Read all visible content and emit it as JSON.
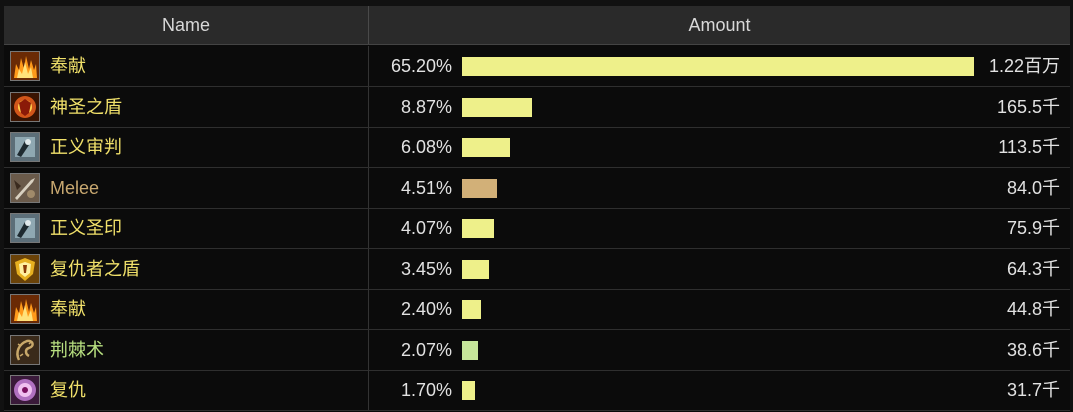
{
  "header": {
    "name_label": "Name",
    "amount_label": "Amount"
  },
  "colors": {
    "ability_text": "#f0e06a",
    "melee_text": "#c8a870",
    "nature_text": "#b8e080",
    "bar_holy": "#eef08a",
    "bar_melee": "#d2b078",
    "bar_nature": "#c6e69a"
  },
  "rows": [
    {
      "name": "奉献",
      "percent": "65.20%",
      "fraction": 0.652,
      "amount": "1.22百万",
      "icon": "consecration-icon",
      "kind": "holy"
    },
    {
      "name": "神圣之盾",
      "percent": "8.87%",
      "fraction": 0.0887,
      "amount": "165.5千",
      "icon": "holy-shield-icon",
      "kind": "holy"
    },
    {
      "name": "正义审判",
      "percent": "6.08%",
      "fraction": 0.0608,
      "amount": "113.5千",
      "icon": "judgement-icon",
      "kind": "holy"
    },
    {
      "name": "Melee",
      "percent": "4.51%",
      "fraction": 0.0451,
      "amount": "84.0千",
      "icon": "melee-icon",
      "kind": "melee"
    },
    {
      "name": "正义圣印",
      "percent": "4.07%",
      "fraction": 0.0407,
      "amount": "75.9千",
      "icon": "seal-icon",
      "kind": "holy"
    },
    {
      "name": "复仇者之盾",
      "percent": "3.45%",
      "fraction": 0.0345,
      "amount": "64.3千",
      "icon": "avengers-shield-icon",
      "kind": "holy"
    },
    {
      "name": "奉献",
      "percent": "2.40%",
      "fraction": 0.024,
      "amount": "44.8千",
      "icon": "consecration-icon",
      "kind": "holy"
    },
    {
      "name": "荆棘术",
      "percent": "2.07%",
      "fraction": 0.0207,
      "amount": "38.6千",
      "icon": "thorns-icon",
      "kind": "nature"
    },
    {
      "name": "复仇",
      "percent": "1.70%",
      "fraction": 0.017,
      "amount": "31.7千",
      "icon": "vengeance-icon",
      "kind": "holy"
    }
  ]
}
